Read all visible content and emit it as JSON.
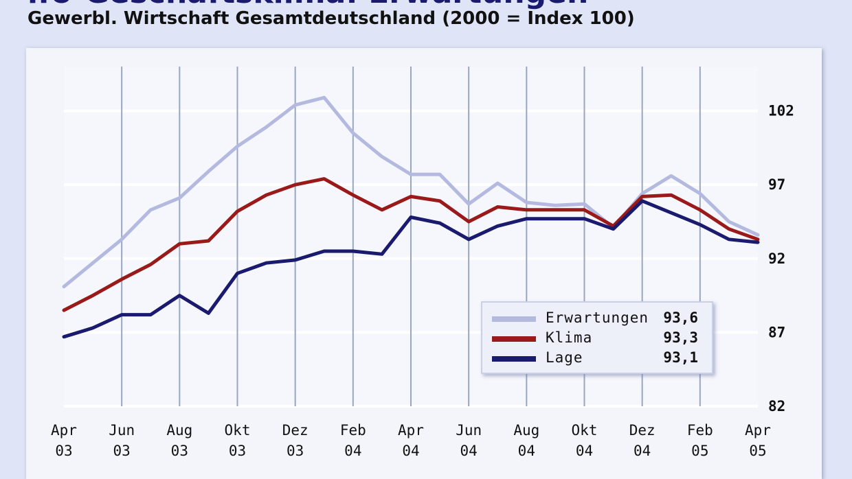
{
  "header": {
    "title_fragment": "ifo-Geschäftsklima: Erwartungen",
    "subtitle": "Gewerbl. Wirtschaft Gesamtdeutschland (2000 = Index 100)"
  },
  "chart_data": {
    "type": "line",
    "title": "Gewerbl. Wirtschaft Gesamtdeutschland (2000 = Index 100)",
    "xlabel": "",
    "ylabel": "",
    "ylim": [
      82,
      105
    ],
    "grid": true,
    "legend_position": "lower-right",
    "y_ticks": [
      "82",
      "87",
      "92",
      "97",
      "102"
    ],
    "x_tick_labels": [
      {
        "month": "Apr",
        "year": "03"
      },
      {
        "month": "Jun",
        "year": "03"
      },
      {
        "month": "Aug",
        "year": "03"
      },
      {
        "month": "Okt",
        "year": "03"
      },
      {
        "month": "Dez",
        "year": "03"
      },
      {
        "month": "Feb",
        "year": "04"
      },
      {
        "month": "Apr",
        "year": "04"
      },
      {
        "month": "Jun",
        "year": "04"
      },
      {
        "month": "Aug",
        "year": "04"
      },
      {
        "month": "Okt",
        "year": "04"
      },
      {
        "month": "Dez",
        "year": "04"
      },
      {
        "month": "Feb",
        "year": "05"
      },
      {
        "month": "Apr",
        "year": "05"
      }
    ],
    "x": [
      "Apr 03",
      "Mai 03",
      "Jun 03",
      "Jul 03",
      "Aug 03",
      "Sep 03",
      "Okt 03",
      "Nov 03",
      "Dez 03",
      "Jan 04",
      "Feb 04",
      "Mär 04",
      "Apr 04",
      "Mai 04",
      "Jun 04",
      "Jul 04",
      "Aug 04",
      "Sep 04",
      "Okt 04",
      "Nov 04",
      "Dez 04",
      "Jan 05",
      "Feb 05",
      "Mär 05",
      "Apr 05"
    ],
    "series": [
      {
        "name": "Erwartungen",
        "color": "#b4b9df",
        "latest_label": "93,6",
        "values": [
          90.1,
          91.7,
          93.3,
          95.3,
          96.1,
          97.9,
          99.6,
          100.9,
          102.4,
          102.9,
          100.5,
          98.9,
          97.7,
          97.7,
          95.7,
          97.1,
          95.8,
          95.6,
          95.7,
          94.1,
          96.4,
          97.6,
          96.4,
          94.5,
          93.6
        ]
      },
      {
        "name": "Klima",
        "color": "#9a1a1a",
        "latest_label": "93,3",
        "values": [
          88.5,
          89.5,
          90.6,
          91.6,
          93.0,
          93.2,
          95.2,
          96.3,
          97.0,
          97.4,
          96.3,
          95.3,
          96.2,
          95.9,
          94.5,
          95.5,
          95.3,
          95.3,
          95.3,
          94.2,
          96.2,
          96.3,
          95.3,
          94.0,
          93.3
        ]
      },
      {
        "name": "Lage",
        "color": "#1a1a6e",
        "latest_label": "93,1",
        "values": [
          86.7,
          87.3,
          88.2,
          88.2,
          89.5,
          88.3,
          91.0,
          91.7,
          91.9,
          92.5,
          92.5,
          92.3,
          94.8,
          94.4,
          93.3,
          94.2,
          94.7,
          94.7,
          94.7,
          94.0,
          95.9,
          95.1,
          94.3,
          93.3,
          93.1
        ]
      }
    ]
  }
}
